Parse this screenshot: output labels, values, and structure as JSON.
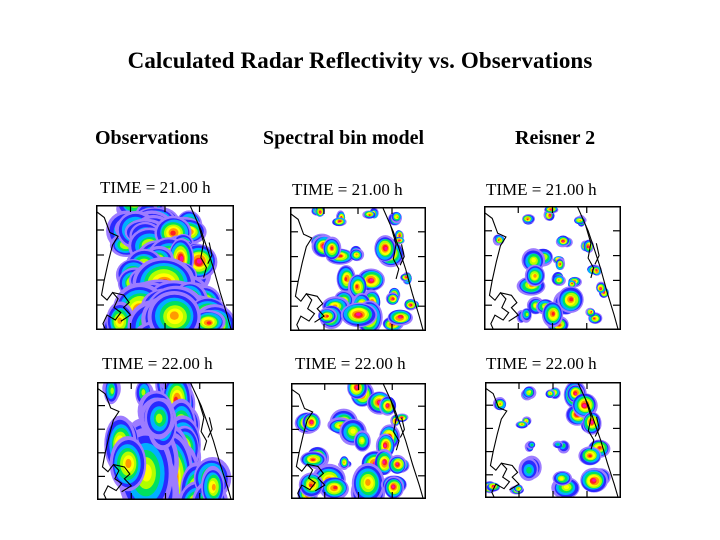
{
  "title": "Calculated Radar Reflectivity vs. Observations",
  "columns": [
    {
      "id": "observations",
      "label": "Observations"
    },
    {
      "id": "spectral-bin",
      "label": "Spectral bin model"
    },
    {
      "id": "reisner2",
      "label": "Reisner 2"
    }
  ],
  "rows": [
    {
      "time_label": "TIME = 21.00 h"
    },
    {
      "time_label": "TIME = 22.00 h"
    }
  ],
  "reflectivity_colors": [
    "#9d7cff",
    "#2a2aff",
    "#00b0ff",
    "#00e060",
    "#b0ff00",
    "#ffff00",
    "#ff9a00",
    "#ff2020",
    "#ff10a0"
  ],
  "panels": [
    {
      "column": "observations",
      "row": 0,
      "style": "broad",
      "cells": [
        [
          0.33,
          0.04,
          2,
          5
        ],
        [
          0.45,
          0.12,
          2,
          6
        ],
        [
          0.22,
          0.25,
          2,
          5
        ],
        [
          0.36,
          0.27,
          2,
          5
        ],
        [
          0.6,
          0.18,
          2,
          7
        ],
        [
          0.62,
          0.32,
          1,
          5
        ],
        [
          0.55,
          0.45,
          3,
          7
        ],
        [
          0.68,
          0.5,
          2,
          8
        ],
        [
          0.42,
          0.5,
          2,
          5
        ],
        [
          0.3,
          0.62,
          2,
          6
        ],
        [
          0.55,
          0.68,
          3,
          7
        ],
        [
          0.45,
          0.78,
          3,
          6
        ],
        [
          0.72,
          0.78,
          2,
          7
        ],
        [
          0.35,
          0.88,
          3,
          7
        ],
        [
          0.6,
          0.9,
          3,
          7
        ],
        [
          0.8,
          0.92,
          2,
          7
        ],
        [
          0.2,
          0.95,
          2,
          6
        ],
        [
          0.5,
          0.97,
          3,
          6
        ]
      ]
    },
    {
      "column": "spectral-bin",
      "row": 0,
      "style": "cells",
      "cells": [
        [
          0.2,
          0.05,
          1,
          8
        ],
        [
          0.35,
          0.1,
          1,
          8
        ],
        [
          0.6,
          0.04,
          1,
          7
        ],
        [
          0.78,
          0.1,
          1,
          6
        ],
        [
          0.22,
          0.3,
          2,
          8
        ],
        [
          0.35,
          0.38,
          2,
          7
        ],
        [
          0.5,
          0.38,
          1,
          6
        ],
        [
          0.7,
          0.35,
          2,
          8
        ],
        [
          0.8,
          0.25,
          1,
          8
        ],
        [
          0.62,
          0.55,
          2,
          8
        ],
        [
          0.45,
          0.6,
          2,
          7
        ],
        [
          0.85,
          0.55,
          1,
          8
        ],
        [
          0.38,
          0.75,
          2,
          6
        ],
        [
          0.55,
          0.78,
          2,
          7
        ],
        [
          0.75,
          0.72,
          1,
          8
        ],
        [
          0.3,
          0.9,
          2,
          7
        ],
        [
          0.55,
          0.92,
          3,
          8
        ],
        [
          0.8,
          0.9,
          2,
          8
        ],
        [
          0.9,
          0.78,
          1,
          8
        ]
      ]
    },
    {
      "column": "reisner2",
      "row": 0,
      "style": "cells",
      "cells": [
        [
          0.3,
          0.1,
          1,
          7
        ],
        [
          0.5,
          0.05,
          1,
          8
        ],
        [
          0.7,
          0.1,
          1,
          6
        ],
        [
          0.58,
          0.28,
          1,
          8
        ],
        [
          0.75,
          0.32,
          1,
          8
        ],
        [
          0.1,
          0.28,
          1,
          7
        ],
        [
          0.4,
          0.4,
          2,
          5
        ],
        [
          0.55,
          0.45,
          1,
          7
        ],
        [
          0.8,
          0.5,
          1,
          8
        ],
        [
          0.35,
          0.6,
          2,
          6
        ],
        [
          0.52,
          0.6,
          1,
          6
        ],
        [
          0.65,
          0.62,
          1,
          7
        ],
        [
          0.4,
          0.78,
          2,
          5
        ],
        [
          0.65,
          0.8,
          2,
          7
        ],
        [
          0.85,
          0.68,
          1,
          8
        ],
        [
          0.55,
          0.92,
          2,
          7
        ],
        [
          0.8,
          0.88,
          1,
          7
        ],
        [
          0.3,
          0.9,
          1,
          4
        ]
      ]
    },
    {
      "column": "observations",
      "row": 1,
      "style": "line",
      "cells": [
        [
          0.55,
          0.05,
          2,
          6
        ],
        [
          0.6,
          0.2,
          2,
          7
        ],
        [
          0.62,
          0.35,
          2,
          7
        ],
        [
          0.6,
          0.5,
          2,
          7
        ],
        [
          0.62,
          0.65,
          2,
          7
        ],
        [
          0.6,
          0.8,
          2,
          8
        ],
        [
          0.55,
          0.93,
          3,
          8
        ],
        [
          0.72,
          0.95,
          2,
          7
        ],
        [
          0.42,
          0.75,
          3,
          5
        ],
        [
          0.35,
          0.88,
          3,
          5
        ],
        [
          0.2,
          0.6,
          2,
          6
        ],
        [
          0.1,
          0.1,
          1,
          4
        ],
        [
          0.35,
          0.15,
          1,
          4
        ],
        [
          0.45,
          0.3,
          2,
          4
        ],
        [
          0.85,
          0.95,
          2,
          6
        ]
      ]
    },
    {
      "column": "spectral-bin",
      "row": 1,
      "style": "cells",
      "cells": [
        [
          0.5,
          0.05,
          2,
          8
        ],
        [
          0.7,
          0.15,
          2,
          8
        ],
        [
          0.8,
          0.3,
          1,
          8
        ],
        [
          0.15,
          0.3,
          2,
          8
        ],
        [
          0.35,
          0.35,
          2,
          6
        ],
        [
          0.5,
          0.45,
          2,
          5
        ],
        [
          0.75,
          0.5,
          2,
          8
        ],
        [
          0.65,
          0.65,
          2,
          8
        ],
        [
          0.2,
          0.65,
          2,
          7
        ],
        [
          0.4,
          0.68,
          1,
          6
        ],
        [
          0.8,
          0.72,
          2,
          8
        ],
        [
          0.35,
          0.88,
          3,
          7
        ],
        [
          0.6,
          0.9,
          3,
          6
        ],
        [
          0.8,
          0.9,
          2,
          8
        ],
        [
          0.15,
          0.92,
          2,
          7
        ]
      ]
    },
    {
      "column": "reisner2",
      "row": 1,
      "style": "cells",
      "cells": [
        [
          0.7,
          0.1,
          2,
          8
        ],
        [
          0.72,
          0.25,
          2,
          8
        ],
        [
          0.5,
          0.1,
          1,
          6
        ],
        [
          0.3,
          0.1,
          1,
          5
        ],
        [
          0.12,
          0.2,
          1,
          6
        ],
        [
          0.28,
          0.35,
          1,
          6
        ],
        [
          0.8,
          0.4,
          2,
          8
        ],
        [
          0.35,
          0.55,
          1,
          3
        ],
        [
          0.55,
          0.55,
          1,
          3
        ],
        [
          0.8,
          0.6,
          2,
          7
        ],
        [
          0.35,
          0.75,
          2,
          3
        ],
        [
          0.6,
          0.88,
          2,
          5
        ],
        [
          0.85,
          0.85,
          2,
          8
        ],
        [
          0.05,
          0.92,
          1,
          8
        ],
        [
          0.25,
          0.92,
          1,
          6
        ]
      ]
    }
  ]
}
